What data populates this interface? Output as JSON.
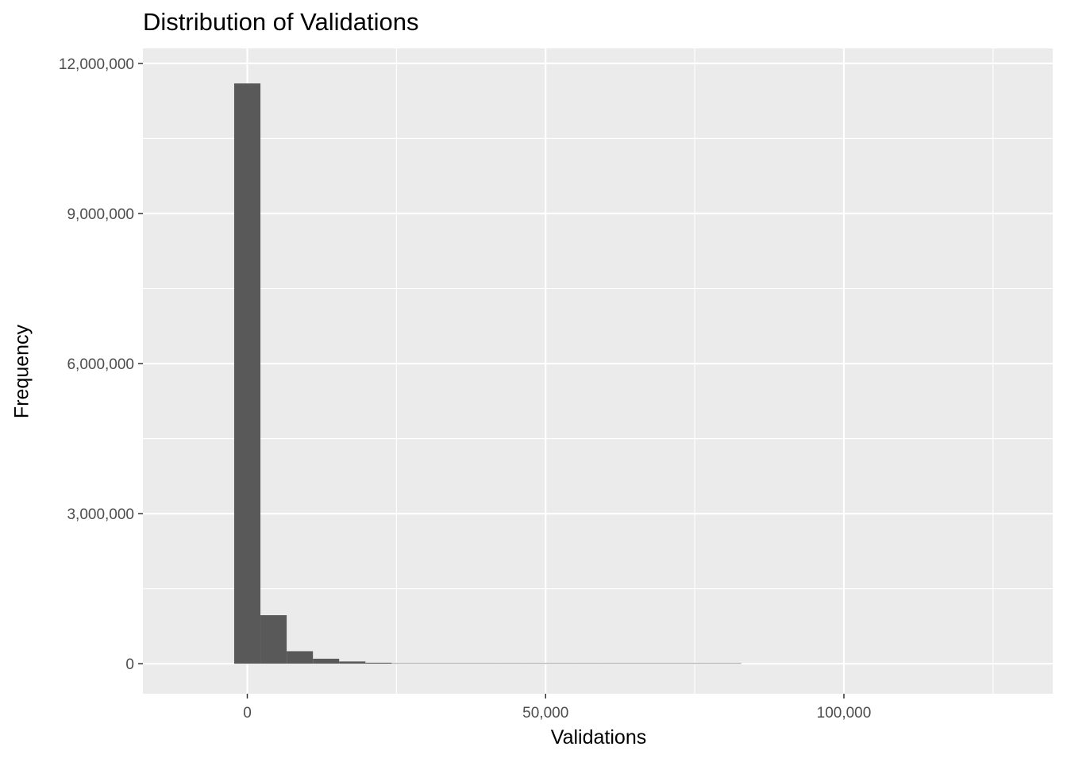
{
  "chart_data": {
    "type": "bar",
    "title": "Distribution of Validations",
    "xlabel": "Validations",
    "ylabel": "Frequency",
    "xlim": [
      -17500,
      135000
    ],
    "ylim": [
      -600000,
      12300000
    ],
    "x_ticks": [
      0,
      50000,
      100000
    ],
    "x_tick_labels": [
      "0",
      "50,000",
      "100,000"
    ],
    "y_ticks": [
      0,
      3000000,
      6000000,
      9000000,
      12000000
    ],
    "y_tick_labels": [
      "0",
      "3,000,000",
      "6,000,000",
      "9,000,000",
      "12,000,000"
    ],
    "bin_width": 4400,
    "bins": [
      {
        "x0": -2200,
        "x1": 2200,
        "count": 11600000
      },
      {
        "x0": 2200,
        "x1": 6600,
        "count": 970000
      },
      {
        "x0": 6600,
        "x1": 11000,
        "count": 250000
      },
      {
        "x0": 11000,
        "x1": 15400,
        "count": 100000
      },
      {
        "x0": 15400,
        "x1": 19800,
        "count": 45000
      },
      {
        "x0": 19800,
        "x1": 24200,
        "count": 20000
      },
      {
        "x0": 24200,
        "x1": 28600,
        "count": 9000
      },
      {
        "x0": 28600,
        "x1": 33000,
        "count": 5000
      },
      {
        "x0": 33000,
        "x1": 37400,
        "count": 3000
      },
      {
        "x0": 37400,
        "x1": 41800,
        "count": 2000
      },
      {
        "x0": 41800,
        "x1": 46200,
        "count": 1500
      },
      {
        "x0": 46200,
        "x1": 50600,
        "count": 1000
      },
      {
        "x0": 50600,
        "x1": 55000,
        "count": 800
      },
      {
        "x0": 55000,
        "x1": 59400,
        "count": 600
      },
      {
        "x0": 59400,
        "x1": 63800,
        "count": 500
      },
      {
        "x0": 63800,
        "x1": 68200,
        "count": 400
      },
      {
        "x0": 68200,
        "x1": 72600,
        "count": 300
      },
      {
        "x0": 72600,
        "x1": 77000,
        "count": 200
      },
      {
        "x0": 77000,
        "x1": 81400,
        "count": 100
      },
      {
        "x0": 81400,
        "x1": 82800,
        "count": 50
      }
    ],
    "colors": {
      "panel": "#ebebeb",
      "grid_major": "#ffffff",
      "bar": "#595959",
      "tick": "#4d4d4d"
    }
  }
}
